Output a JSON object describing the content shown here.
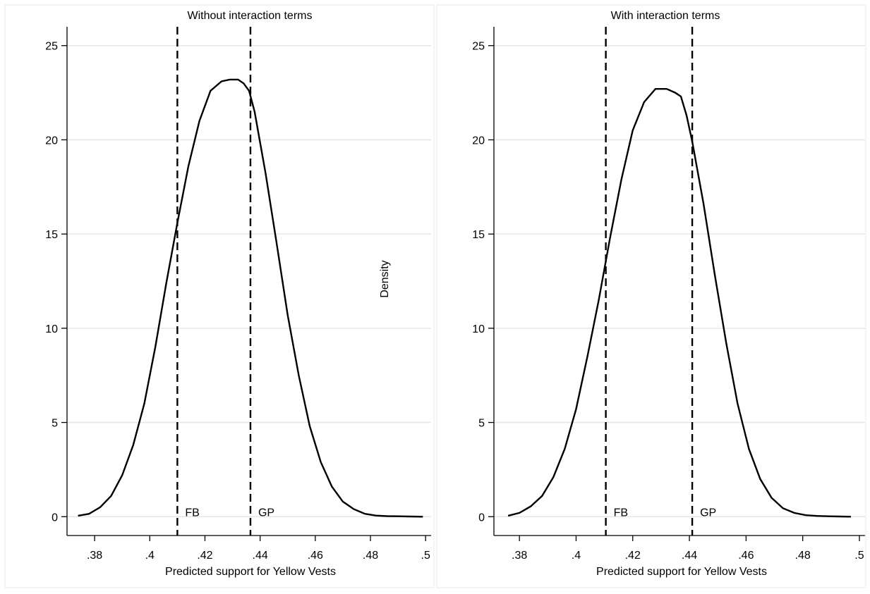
{
  "colors": {
    "background": "#ffffff",
    "gridline": "#e6e6e6",
    "panel_border": "#f0f0f0",
    "line": "#000000"
  },
  "shared_y_label": "Density",
  "chart_data": [
    {
      "type": "line",
      "title": "Without interaction terms",
      "xlabel": "Predicted support for Yellow Vests",
      "ylabel": "Density",
      "xlim": [
        0.37,
        0.502
      ],
      "ylim": [
        -1.0,
        26.0
      ],
      "x_ticks": [
        0.38,
        0.4,
        0.42,
        0.44,
        0.46,
        0.48,
        0.5
      ],
      "x_tick_labels": [
        ".38",
        ".4",
        ".42",
        ".44",
        ".46",
        ".48",
        ".5"
      ],
      "y_ticks": [
        0,
        5,
        10,
        15,
        20,
        25
      ],
      "y_tick_labels": [
        "0",
        "5",
        "10",
        "15",
        "20",
        "25"
      ],
      "grid": true,
      "series": [
        {
          "x": [
            0.374,
            0.378,
            0.382,
            0.386,
            0.39,
            0.394,
            0.398,
            0.402,
            0.406,
            0.41,
            0.414,
            0.418,
            0.422,
            0.426,
            0.429,
            0.432,
            0.434,
            0.436,
            0.438,
            0.442,
            0.446,
            0.45,
            0.454,
            0.458,
            0.462,
            0.466,
            0.47,
            0.474,
            0.478,
            0.482,
            0.486,
            0.49,
            0.494,
            0.499
          ],
          "y": [
            0.05,
            0.15,
            0.5,
            1.1,
            2.2,
            3.8,
            6.0,
            9.0,
            12.4,
            15.6,
            18.6,
            21.0,
            22.6,
            23.1,
            23.2,
            23.2,
            23.0,
            22.6,
            21.5,
            18.2,
            14.5,
            10.7,
            7.5,
            4.8,
            2.9,
            1.6,
            0.8,
            0.4,
            0.15,
            0.06,
            0.03,
            0.02,
            0.01,
            0.0
          ]
        }
      ],
      "vlines": [
        {
          "label": "FB",
          "x": 0.41
        },
        {
          "label": "GP",
          "x": 0.4365
        }
      ]
    },
    {
      "type": "line",
      "title": "With interaction terms",
      "xlabel": "Predicted support for Yellow Vests",
      "ylabel": "Density",
      "xlim": [
        0.371,
        0.502
      ],
      "ylim": [
        -1.0,
        26.0
      ],
      "x_ticks": [
        0.38,
        0.4,
        0.42,
        0.44,
        0.46,
        0.48,
        0.5
      ],
      "x_tick_labels": [
        ".38",
        ".4",
        ".42",
        ".44",
        ".46",
        ".48",
        ".5"
      ],
      "y_ticks": [
        0,
        5,
        10,
        15,
        20,
        25
      ],
      "y_tick_labels": [
        "0",
        "5",
        "10",
        "15",
        "20",
        "25"
      ],
      "grid": true,
      "series": [
        {
          "x": [
            0.376,
            0.38,
            0.384,
            0.388,
            0.392,
            0.396,
            0.4,
            0.404,
            0.408,
            0.412,
            0.416,
            0.42,
            0.424,
            0.428,
            0.432,
            0.435,
            0.437,
            0.439,
            0.441,
            0.445,
            0.449,
            0.453,
            0.457,
            0.461,
            0.465,
            0.469,
            0.473,
            0.477,
            0.481,
            0.485,
            0.489,
            0.493,
            0.497
          ],
          "y": [
            0.05,
            0.2,
            0.55,
            1.1,
            2.1,
            3.6,
            5.7,
            8.5,
            11.5,
            14.8,
            17.9,
            20.5,
            22.0,
            22.7,
            22.7,
            22.5,
            22.3,
            21.3,
            19.9,
            16.6,
            12.8,
            9.2,
            6.0,
            3.6,
            2.0,
            1.0,
            0.45,
            0.2,
            0.08,
            0.04,
            0.02,
            0.01,
            0.0
          ]
        }
      ],
      "vlines": [
        {
          "label": "FB",
          "x": 0.4105
        },
        {
          "label": "GP",
          "x": 0.441
        }
      ]
    }
  ]
}
